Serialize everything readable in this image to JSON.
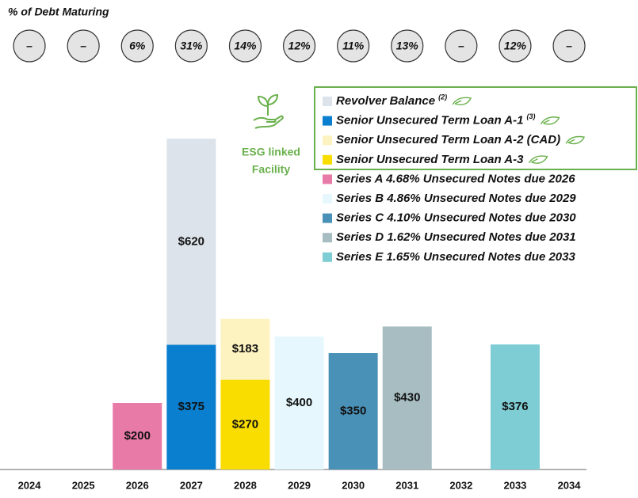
{
  "chart_data": {
    "type": "stacked_bar",
    "debt_maturing": {
      "title": "% of Debt Maturing",
      "values": [
        null,
        null,
        6,
        31,
        14,
        12,
        11,
        13,
        null,
        12,
        null
      ],
      "value_labels": [
        "–",
        "–",
        "6%",
        "31%",
        "14%",
        "12%",
        "11%",
        "13%",
        "–",
        "12%",
        "–"
      ]
    },
    "annotation": [
      "ESG linked",
      "Facility"
    ],
    "categories": [
      "2024",
      "2025",
      "2026",
      "2027",
      "2028",
      "2029",
      "2030",
      "2031",
      "2032",
      "2033",
      "2034"
    ],
    "ylim": [
      0,
      1000
    ],
    "series": [
      {
        "name": "Revolver Balance",
        "note": "(2)",
        "esg": true,
        "color": "#dde3ea",
        "values": [
          null,
          null,
          null,
          620,
          null,
          null,
          null,
          null,
          null,
          null,
          null
        ],
        "value_labels": [
          null,
          null,
          null,
          "$620",
          null,
          null,
          null,
          null,
          null,
          null,
          null
        ]
      },
      {
        "name": "Senior Unsecured Term Loan A-1",
        "note": "(3)",
        "esg": true,
        "color": "#0a7fcf",
        "values": [
          null,
          null,
          null,
          375,
          null,
          null,
          null,
          null,
          null,
          null,
          null
        ],
        "value_labels": [
          null,
          null,
          null,
          "$375",
          null,
          null,
          null,
          null,
          null,
          null,
          null
        ]
      },
      {
        "name": "Senior Unsecured Term Loan A-2 (CAD)",
        "esg": true,
        "color": "#fdf3c0",
        "values": [
          null,
          null,
          null,
          null,
          183,
          null,
          null,
          null,
          null,
          null,
          null
        ],
        "value_labels": [
          null,
          null,
          null,
          null,
          "$183",
          null,
          null,
          null,
          null,
          null,
          null
        ]
      },
      {
        "name": "Senior Unsecured Term Loan A-3",
        "esg": true,
        "color": "#f9dc00",
        "values": [
          null,
          null,
          null,
          null,
          270,
          null,
          null,
          null,
          null,
          null,
          null
        ],
        "value_labels": [
          null,
          null,
          null,
          null,
          "$270",
          null,
          null,
          null,
          null,
          null,
          null
        ]
      },
      {
        "name": "Series A 4.68% Unsecured Notes due 2026",
        "color": "#e87aa8",
        "values": [
          null,
          null,
          200,
          null,
          null,
          null,
          null,
          null,
          null,
          null,
          null
        ],
        "value_labels": [
          null,
          null,
          "$200",
          null,
          null,
          null,
          null,
          null,
          null,
          null,
          null
        ]
      },
      {
        "name": "Series B 4.86% Unsecured Notes due 2029",
        "color": "#e6f8fd",
        "values": [
          null,
          null,
          null,
          null,
          null,
          400,
          null,
          null,
          null,
          null,
          null
        ],
        "value_labels": [
          null,
          null,
          null,
          null,
          null,
          "$400",
          null,
          null,
          null,
          null,
          null
        ]
      },
      {
        "name": "Series C 4.10% Unsecured Notes due 2030",
        "color": "#4a91b8",
        "values": [
          null,
          null,
          null,
          null,
          null,
          null,
          350,
          null,
          null,
          null,
          null
        ],
        "value_labels": [
          null,
          null,
          null,
          null,
          null,
          null,
          "$350",
          null,
          null,
          null,
          null
        ]
      },
      {
        "name": "Series D 1.62% Unsecured Notes due 2031",
        "color": "#a7bdc2",
        "values": [
          null,
          null,
          null,
          null,
          null,
          null,
          null,
          430,
          null,
          null,
          null
        ],
        "value_labels": [
          null,
          null,
          null,
          null,
          null,
          null,
          null,
          "$430",
          null,
          null,
          null
        ]
      },
      {
        "name": "Series E 1.65% Unsecured Notes due 2033",
        "color": "#7ecdd4",
        "values": [
          null,
          null,
          null,
          null,
          null,
          null,
          null,
          null,
          null,
          376,
          null
        ],
        "value_labels": [
          null,
          null,
          null,
          null,
          null,
          null,
          null,
          null,
          null,
          "$376",
          null
        ]
      }
    ]
  }
}
